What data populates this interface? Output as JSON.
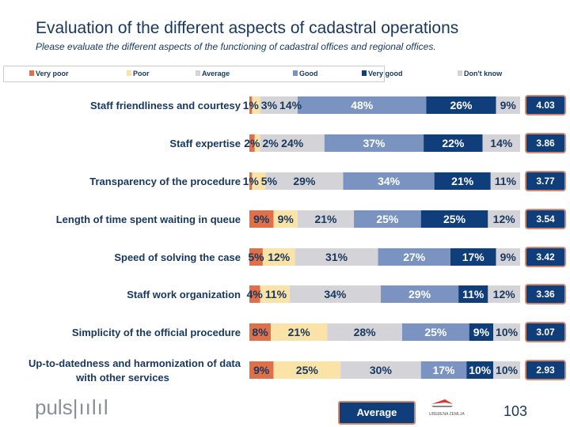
{
  "title": "Evaluation of the different aspects of cadastral operations",
  "subtitle": "Please evaluate the different aspects of the functioning of cadastral offices and regional offices.",
  "footer": {
    "average_label": "Average",
    "page_number": "103",
    "logo_text": "puls",
    "partner_logo_text": "UREĐENA ZEMLJA"
  },
  "chart_data": {
    "type": "bar",
    "orientation": "horizontal",
    "stacked": true,
    "unit": "%",
    "categories": [
      "Staff friendliness and courtesy",
      "Staff expertise",
      "Transparency of the procedure",
      "Length of time spent waiting in queue",
      "Speed of solving the case",
      "Staff work organization",
      "Simplicity of the official procedure",
      "Up-to-datedness and harmonization of data with other services"
    ],
    "series": [
      {
        "name": "Very poor",
        "color": "#e0704a",
        "values": [
          1,
          2,
          1,
          9,
          5,
          4,
          8,
          9
        ]
      },
      {
        "name": "Poor",
        "color": "#fbe3a8",
        "values": [
          3,
          2,
          5,
          9,
          12,
          11,
          21,
          25
        ]
      },
      {
        "name": "Average",
        "color": "#d4d4d8",
        "values": [
          14,
          24,
          29,
          21,
          31,
          34,
          28,
          30
        ]
      },
      {
        "name": "Good",
        "color": "#7a93c0",
        "values": [
          48,
          37,
          34,
          25,
          27,
          29,
          25,
          17
        ]
      },
      {
        "name": "Very good",
        "color": "#0f3e7a",
        "values": [
          26,
          22,
          21,
          25,
          17,
          11,
          9,
          10
        ]
      },
      {
        "name": "Don't know",
        "color": "#d4d4d8",
        "values": [
          9,
          14,
          11,
          12,
          9,
          12,
          10,
          10
        ]
      }
    ],
    "averages": [
      "4.03",
      "3.86",
      "3.77",
      "3.54",
      "3.42",
      "3.36",
      "3.07",
      "2.93"
    ],
    "legend": "top"
  }
}
